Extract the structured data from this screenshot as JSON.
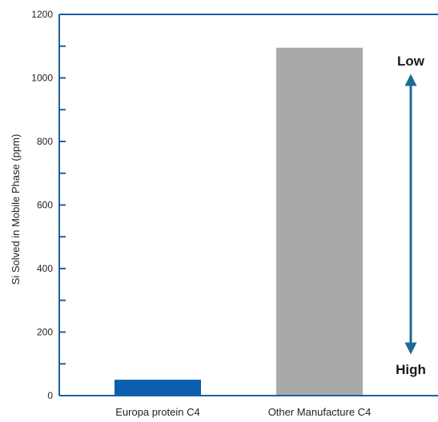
{
  "chart_data": {
    "type": "bar",
    "categories": [
      "Europa protein C4",
      "Other Manufacture C4"
    ],
    "values": [
      50,
      1095
    ],
    "bar_colors": [
      "#0b5fae",
      "#a7a9ab"
    ],
    "ylabel": "Si Solved in Mobile Phase (ppm)",
    "xlabel": "",
    "ylim": [
      0,
      1200
    ],
    "yticks": [
      0,
      200,
      400,
      600,
      800,
      1000,
      1200
    ],
    "grid": false,
    "axis_color": "#1f5fa0",
    "annotations": {
      "top_label": "Low",
      "bottom_label": "High",
      "arrow_color": "#1d6a96"
    }
  }
}
